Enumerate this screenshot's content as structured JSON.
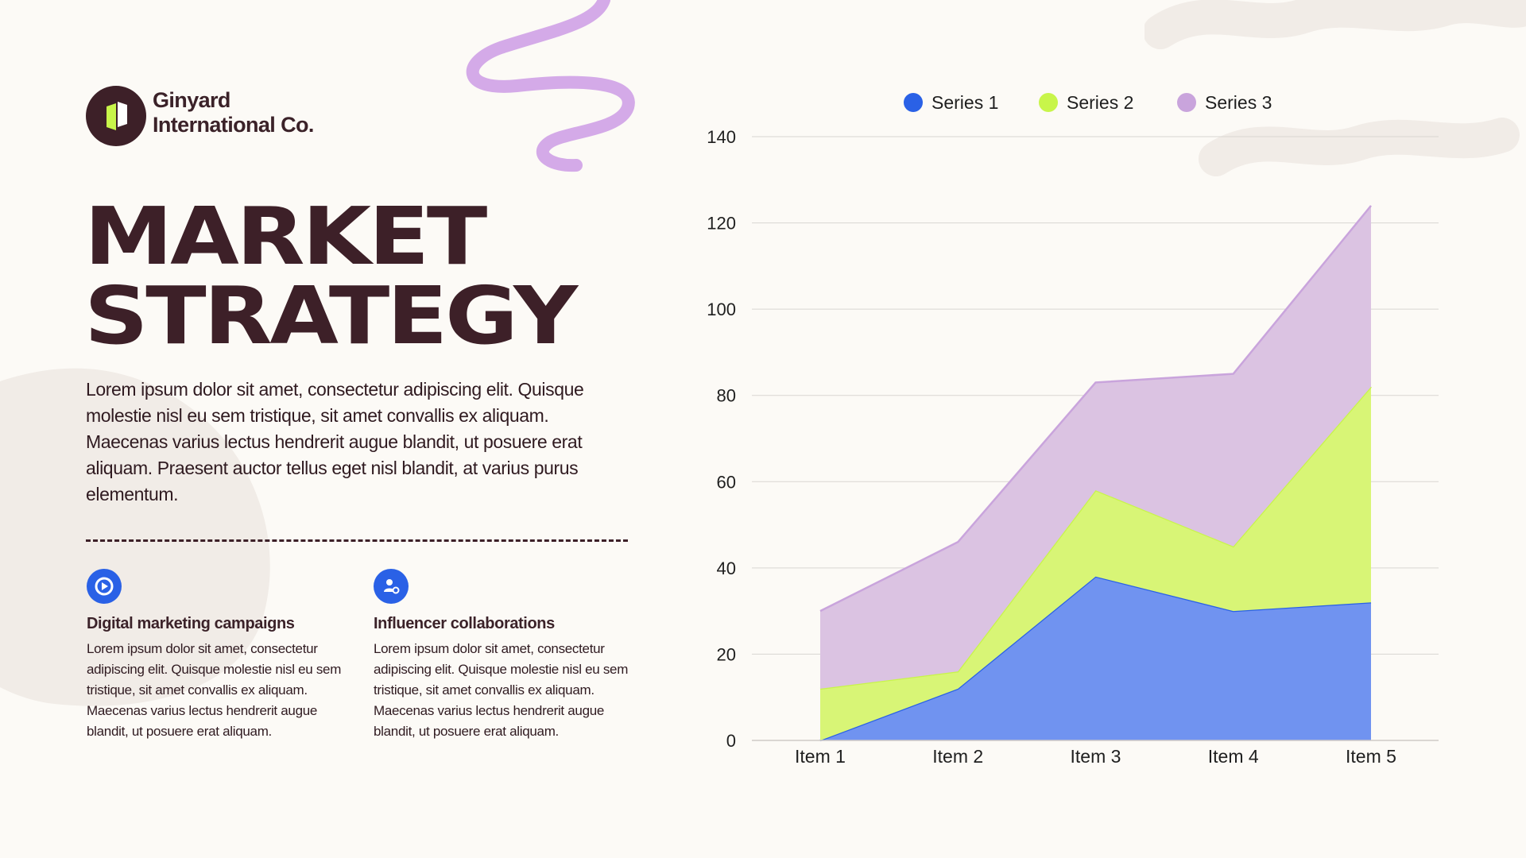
{
  "brand": {
    "line1": "Ginyard",
    "line2": "International Co.",
    "logo_icon": "building-door-icon"
  },
  "title": {
    "line1": "MARKET",
    "line2": "STRATEGY"
  },
  "intro": "Lorem ipsum dolor sit amet, consectetur adipiscing elit. Quisque molestie nisl eu sem tristique, sit amet convallis ex aliquam. Maecenas varius lectus hendrerit augue blandit, ut posuere erat aliquam. Praesent auctor tellus eget nisl blandit, at varius purus elementum.",
  "features": [
    {
      "icon": "play-circle-icon",
      "title": "Digital marketing campaigns",
      "text": "Lorem ipsum dolor sit amet, consectetur adipiscing elit. Quisque molestie nisl eu sem tristique, sit amet convallis ex aliquam. Maecenas varius lectus hendrerit augue blandit, ut posuere erat aliquam."
    },
    {
      "icon": "user-gear-icon",
      "title": "Influencer collaborations",
      "text": "Lorem ipsum dolor sit amet, consectetur adipiscing elit. Quisque molestie nisl eu sem tristique, sit amet convallis ex aliquam. Maecenas varius lectus hendrerit augue blandit, ut posuere erat aliquam."
    }
  ],
  "colors": {
    "dark": "#3d2028",
    "accent_blue": "#2a61e6",
    "accent_lime": "#c8f54a",
    "accent_lilac": "#c9a4dc",
    "background": "#fcfaf6"
  },
  "chart_data": {
    "type": "area",
    "stacked": true,
    "categories": [
      "Item 1",
      "Item 2",
      "Item 3",
      "Item 4",
      "Item 5"
    ],
    "series": [
      {
        "name": "Series 1",
        "values": [
          0,
          12,
          38,
          30,
          32
        ],
        "color": "#2a61e6",
        "fill": "#7093f0"
      },
      {
        "name": "Series 2",
        "values": [
          12,
          4,
          20,
          15,
          50
        ],
        "color": "#c8f54a",
        "fill": "#d8f576"
      },
      {
        "name": "Series 3",
        "values": [
          18,
          30,
          25,
          40,
          42
        ],
        "color": "#c9a4dc",
        "fill": "#dbc3e2"
      }
    ],
    "ylim": [
      0,
      140
    ],
    "yticks": [
      0,
      20,
      40,
      60,
      80,
      100,
      120,
      140
    ],
    "grid": true,
    "legend": "top",
    "title": "",
    "xlabel": "",
    "ylabel": ""
  }
}
